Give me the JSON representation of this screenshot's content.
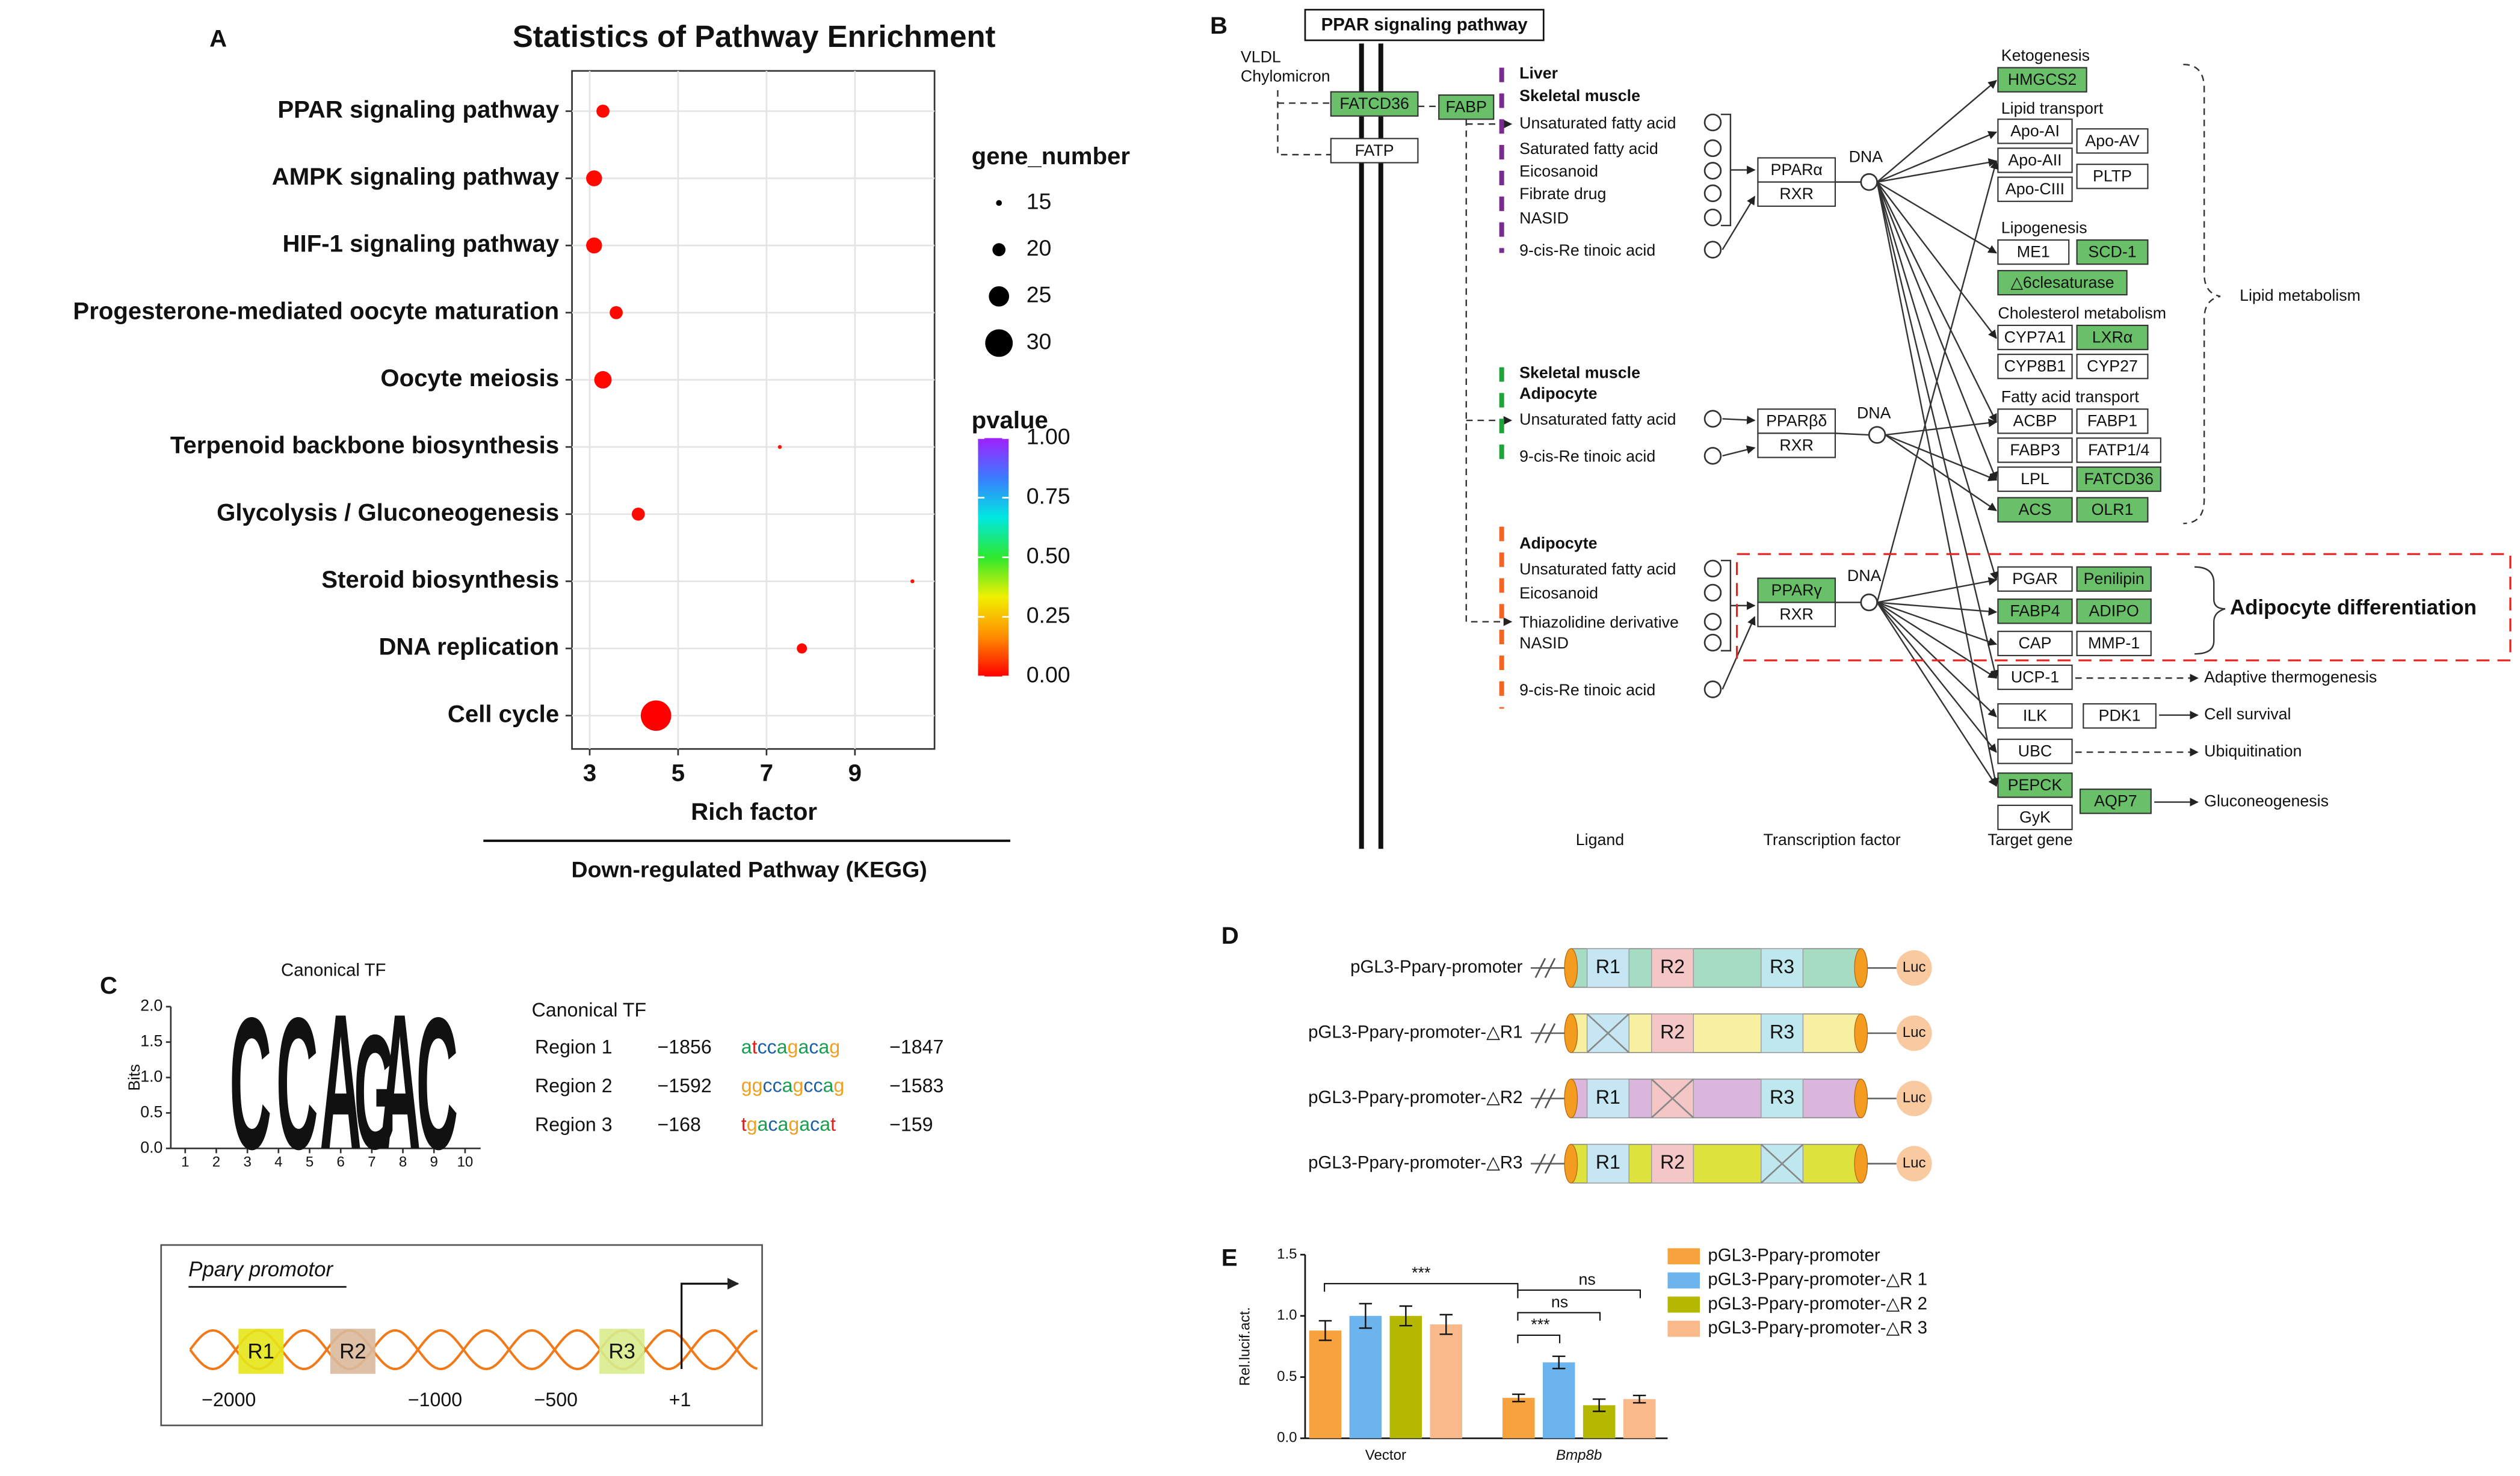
{
  "panels": [
    "A",
    "B",
    "C",
    "D",
    "E"
  ],
  "chart_data": [
    {
      "type": "scatter",
      "title": "Statistics of Pathway Enrichment",
      "categories": [
        "PPAR signaling pathway",
        "AMPK signaling pathway",
        "HIF-1 signaling pathway",
        "Progesterone-mediated oocyte maturation",
        "Oocyte meiosis",
        "Terpenoid backbone biosynthesis",
        "Glycolysis / Gluconeogenesis",
        "Steroid biosynthesis",
        "DNA replication",
        "Cell cycle"
      ],
      "values": [
        3.3,
        3.1,
        3.1,
        3.6,
        3.3,
        7.3,
        4.1,
        10.3,
        7.8,
        4.5
      ],
      "sizes": [
        20,
        22,
        22,
        20,
        23,
        13,
        20,
        13,
        18,
        32
      ],
      "pvalues": [
        0.01,
        0.01,
        0.01,
        0.01,
        0.01,
        0.02,
        0.01,
        0.02,
        0.01,
        0.0
      ],
      "xlabel": "Rich factor",
      "footer": "Down-regulated Pathway (KEGG)",
      "xlim": [
        2.6,
        10.8
      ],
      "xticks": [
        3,
        5,
        7,
        9
      ],
      "grid": true,
      "size_title": "gene_number",
      "size_ticks": [
        15,
        20,
        25,
        30
      ],
      "color_title": "pvalue",
      "color_lim": [
        0,
        1
      ],
      "color_ticks": [
        {
          "value": 1,
          "label": "1.00"
        },
        {
          "value": 0.75,
          "label": "0.75"
        },
        {
          "value": 0.5,
          "label": "0.50"
        },
        {
          "value": 0.25,
          "label": "0.25"
        },
        {
          "value": 0,
          "label": "0.00"
        }
      ],
      "colormap": [
        "#ff0000",
        "#ff8c00",
        "#f0f000",
        "#2ee82e",
        "#00e8e0",
        "#3a7cff",
        "#a020ff"
      ]
    },
    {
      "type": "logo",
      "title": "Canonical TF",
      "ylabel": "Bits",
      "letters": [
        "C",
        "C",
        "A",
        "G",
        "A",
        "C"
      ],
      "colors": [
        "#1f5fa6",
        "#1f5fa6",
        "#1a9e50",
        "#f5a623",
        "#1a9e50",
        "#1f5fa6"
      ],
      "x": [
        3.1,
        4.6,
        6.0,
        7.1,
        7.9,
        9.1
      ],
      "values": [
        1.9,
        1.9,
        1.95,
        1.65,
        1.95,
        1.9
      ],
      "xlim": [
        0.5,
        10.5
      ],
      "xticks": [
        1,
        2,
        3,
        4,
        5,
        6,
        7,
        8,
        9,
        10
      ],
      "ylim": [
        0,
        2
      ],
      "yticks": [
        {
          "value": 0,
          "label": "0.0"
        },
        {
          "value": 0.5,
          "label": "0.5"
        },
        {
          "value": 1,
          "label": "1.0"
        },
        {
          "value": 1.5,
          "label": "1.5"
        },
        {
          "value": 2,
          "label": "2.0"
        }
      ]
    },
    {
      "type": "bar",
      "ylabel": "Rel.lucif.act.",
      "categories": [
        "Vector",
        "Bmp8b"
      ],
      "series": [
        {
          "name": "pGL3-Pparγ-promoter",
          "color": "#f7a23c",
          "values": [
            0.88,
            0.33
          ],
          "errors": [
            0.08,
            0.03
          ]
        },
        {
          "name": "pGL3-Pparγ-promoter-△R 1",
          "color": "#6cb4ee",
          "values": [
            1.0,
            0.62
          ],
          "errors": [
            0.1,
            0.05
          ]
        },
        {
          "name": "pGL3-Pparγ-promoter-△R 2",
          "color": "#b5b800",
          "values": [
            1.0,
            0.27
          ],
          "errors": [
            0.08,
            0.05
          ]
        },
        {
          "name": "pGL3-Pparγ-promoter-△R 3",
          "color": "#f9b98a",
          "values": [
            0.93,
            0.32
          ],
          "errors": [
            0.08,
            0.03
          ]
        }
      ],
      "ylim": [
        0,
        1.5
      ],
      "yticks": [
        {
          "value": 0,
          "label": "0.0"
        },
        {
          "value": 0.5,
          "label": "0.5"
        },
        {
          "value": 1,
          "label": "1.0"
        },
        {
          "value": 1.5,
          "label": "1.5"
        }
      ],
      "annotations": [
        "***",
        "ns",
        "ns",
        "***"
      ]
    }
  ],
  "pathway": {
    "title": "PPAR signaling pathway",
    "carriers": [
      "VLDL",
      "Chylomicron"
    ],
    "transporters": [
      {
        "label": "FATCD36",
        "color": "#6abf69"
      },
      {
        "label": "FATP"
      },
      {
        "label": "FABP",
        "color": "#6abf69"
      }
    ],
    "groups": [
      {
        "color": "#7b2b8f",
        "tissues": [
          "Liver",
          "Skeletal muscle"
        ],
        "ligands": [
          "Unsaturated fatty acid",
          "Saturated fatty acid",
          "Eicosanoid",
          "Fibrate drug",
          "NASID",
          "9-cis-Re tinoic acid"
        ],
        "receptor": [
          {
            "label": "PPARα"
          },
          {
            "label": "RXR"
          }
        ],
        "dna": "DNA"
      },
      {
        "color": "#1fa33a",
        "tissues": [
          "Skeletal muscle",
          "Adipocyte"
        ],
        "ligands": [
          "Unsaturated fatty acid",
          "9-cis-Re tinoic acid"
        ],
        "receptor": [
          {
            "label": "PPARβδ"
          },
          {
            "label": "RXR"
          }
        ],
        "dna": "DNA"
      },
      {
        "color": "#f26522",
        "tissues": [
          "Adipocyte"
        ],
        "ligands": [
          "Unsaturated fatty acid",
          "Eicosanoid",
          "Thiazolidine derivative",
          "NASID",
          "9-cis-Re tinoic acid"
        ],
        "receptor": [
          {
            "label": "PPARγ",
            "color": "#6abf69"
          },
          {
            "label": "RXR"
          }
        ],
        "dna": "DNA"
      }
    ],
    "targets": [
      {
        "heading": "Ketogenesis",
        "genes": [
          {
            "label": "HMGCS2",
            "color": "#6abf69"
          }
        ]
      },
      {
        "heading": "Lipid transport",
        "genes": [
          {
            "label": "Apo-AI"
          },
          {
            "label": "Apo-AV"
          },
          {
            "label": "Apo-AII"
          },
          {
            "label": "PLTP"
          },
          {
            "label": "Apo-CIII"
          }
        ]
      },
      {
        "heading": "Lipogenesis",
        "genes": [
          {
            "label": "ME1"
          },
          {
            "label": "SCD-1",
            "color": "#6abf69"
          },
          {
            "label": "△6clesaturase",
            "color": "#6abf69"
          }
        ]
      },
      {
        "heading": "Cholesterol metabolism",
        "genes": [
          {
            "label": "CYP7A1"
          },
          {
            "label": "LXRα",
            "color": "#6abf69"
          },
          {
            "label": "CYP8B1"
          },
          {
            "label": "CYP27"
          }
        ]
      },
      {
        "heading": "Fatty acid transport",
        "genes": [
          {
            "label": "ACBP"
          },
          {
            "label": "FABP1"
          },
          {
            "label": "FABP3"
          },
          {
            "label": "FATP1/4"
          },
          {
            "label": "LPL"
          },
          {
            "label": "FATCD36",
            "color": "#6abf69"
          },
          {
            "label": "ACS",
            "color": "#6abf69"
          },
          {
            "label": "OLR1",
            "color": "#6abf69"
          }
        ]
      },
      {
        "genes": [
          {
            "label": "PGAR"
          },
          {
            "label": "Penilipin",
            "color": "#6abf69"
          },
          {
            "label": "FABP4",
            "color": "#6abf69"
          },
          {
            "label": "ADIPO",
            "color": "#6abf69"
          },
          {
            "label": "CAP"
          },
          {
            "label": "MMP-1"
          }
        ]
      },
      {
        "genes": [
          {
            "label": "UCP-1"
          }
        ]
      },
      {
        "genes": [
          {
            "label": "ILK"
          },
          {
            "label": "PDK1"
          }
        ]
      },
      {
        "genes": [
          {
            "label": "UBC"
          }
        ]
      },
      {
        "genes": [
          {
            "label": "PEPCK",
            "color": "#6abf69"
          },
          {
            "label": "AQP7",
            "color": "#6abf69"
          },
          {
            "label": "GyK"
          }
        ]
      }
    ],
    "outcomes": [
      "Lipid metabolism",
      "Adipocyte differentiation",
      "Adaptive thermogenesis",
      "Cell survival",
      "Ubiquitination",
      "Gluconeogenesis"
    ],
    "columns": [
      "Ligand",
      "Transcription  factor",
      "Target  gene"
    ]
  },
  "motif": {
    "heading": "Canonical TF",
    "rows": [
      [
        "Region 1",
        "−1856",
        "atccagacag",
        "−1847"
      ],
      [
        "Region 2",
        "−1592",
        "ggccagccag",
        "−1583"
      ],
      [
        "Region 3",
        "−168",
        "tgacagacat",
        "−159"
      ]
    ]
  },
  "promoter": {
    "title": "Pparγ promotor",
    "regions": [
      "R1",
      "R2",
      "R3"
    ],
    "positions": [
      "−2000",
      "−1000",
      "−500",
      "+1"
    ]
  },
  "constructs": {
    "labels": [
      "pGL3-Pparγ-promoter",
      "pGL3-Pparγ-promoter-△R1",
      "pGL3-Pparγ-promoter-△R2",
      "pGL3-Pparγ-promoter-△R3"
    ],
    "regions": [
      "R1",
      "R2",
      "R3"
    ],
    "reporter": "Luc"
  }
}
